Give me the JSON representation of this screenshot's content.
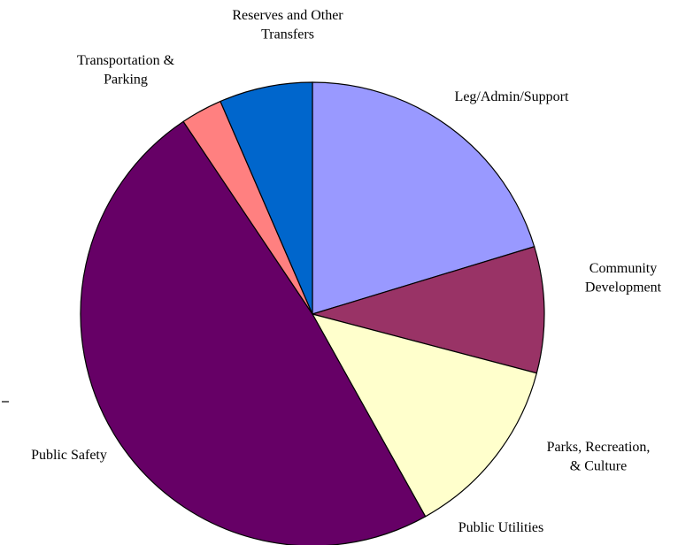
{
  "chart_data": {
    "type": "pie",
    "title": "",
    "start_angle_deg": 0,
    "direction": "clockwise",
    "slices": [
      {
        "label_lines": [
          "Leg/Admin/Support"
        ],
        "value": 20.3,
        "color": "#9999FF"
      },
      {
        "label_lines": [
          "Community",
          "Development"
        ],
        "value": 8.8,
        "color": "#993366"
      },
      {
        "label_lines": [
          "Parks, Recreation,",
          "& Culture"
        ],
        "value": 12.8,
        "color": "#FFFFCC"
      },
      {
        "label_lines": [
          "Public Utilities"
        ],
        "value": 0.0,
        "color": "#CCFFFF"
      },
      {
        "label_lines": [
          "Public Safety"
        ],
        "value": 48.7,
        "color": "#660066"
      },
      {
        "label_lines": [
          "Transportation &",
          "Parking"
        ],
        "value": 2.9,
        "color": "#FF8080"
      },
      {
        "label_lines": [
          "Reserves and Other",
          "Transfers"
        ],
        "value": 6.5,
        "color": "#0066CC"
      }
    ],
    "legend": "none"
  }
}
